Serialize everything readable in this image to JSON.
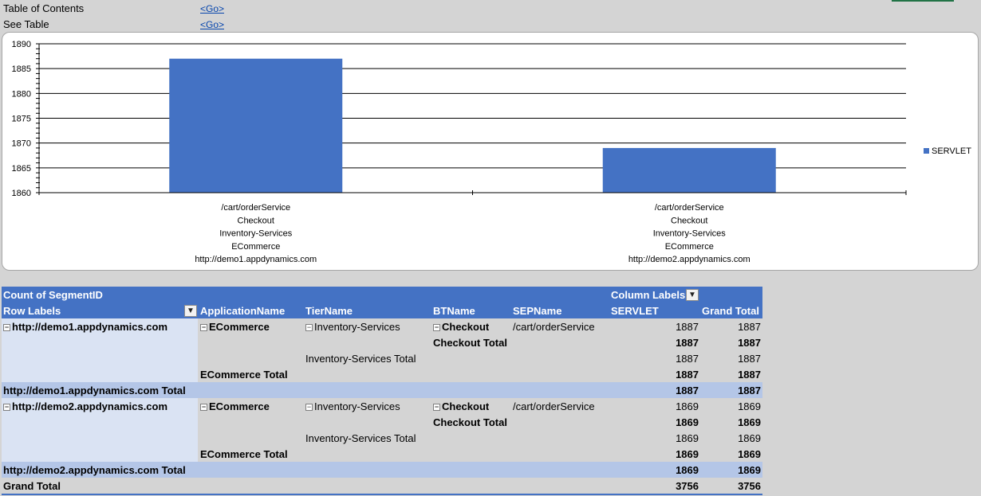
{
  "sheet": {
    "toc_label": "Table of Contents",
    "toc_link": "<Go>",
    "see_table_label": "See Table",
    "see_table_link": "<Go>"
  },
  "chart_data": {
    "type": "bar",
    "categories": [
      [
        "/cart/orderService",
        "Checkout",
        "Inventory-Services",
        "ECommerce",
        "http://demo1.appdynamics.com"
      ],
      [
        "/cart/orderService",
        "Checkout",
        "Inventory-Services",
        "ECommerce",
        "http://demo2.appdynamics.com"
      ]
    ],
    "series": [
      {
        "name": "SERVLET",
        "values": [
          1887,
          1869
        ],
        "color": "#4472c4"
      }
    ],
    "ylim": [
      1860,
      1890
    ],
    "yticks": [
      1860,
      1865,
      1870,
      1875,
      1880,
      1885,
      1890
    ],
    "grid": true,
    "legend": "right"
  },
  "pivot": {
    "header": {
      "count_label": "Count of SegmentID",
      "column_labels": "Column Labels",
      "row_labels": "Row Labels",
      "application_name": "ApplicationName",
      "tier_name": "TierName",
      "bt_name": "BTName",
      "sep_name": "SEPName",
      "servlet": "SERVLET",
      "grand_total": "Grand Total"
    },
    "groups": [
      {
        "host": "http://demo1.appdynamics.com",
        "app": "ECommerce",
        "tier": "Inventory-Services",
        "bt": "Checkout",
        "sep": "/cart/orderService",
        "servlet": "1887",
        "total": "1887",
        "bt_total_label": "Checkout Total",
        "bt_total_servlet": "1887",
        "bt_total_total": "1887",
        "tier_total_label": "Inventory-Services Total",
        "tier_total_servlet": "1887",
        "tier_total_total": "1887",
        "app_total_label": "ECommerce Total",
        "app_total_servlet": "1887",
        "app_total_total": "1887",
        "host_total_label": "http://demo1.appdynamics.com Total",
        "host_total_servlet": "1887",
        "host_total_total": "1887"
      },
      {
        "host": "http://demo2.appdynamics.com",
        "app": "ECommerce",
        "tier": "Inventory-Services",
        "bt": "Checkout",
        "sep": "/cart/orderService",
        "servlet": "1869",
        "total": "1869",
        "bt_total_label": "Checkout Total",
        "bt_total_servlet": "1869",
        "bt_total_total": "1869",
        "tier_total_label": "Inventory-Services Total",
        "tier_total_servlet": "1869",
        "tier_total_total": "1869",
        "app_total_label": "ECommerce Total",
        "app_total_servlet": "1869",
        "app_total_total": "1869",
        "host_total_label": "http://demo2.appdynamics.com Total",
        "host_total_servlet": "1869",
        "host_total_total": "1869"
      }
    ],
    "grand_total_label": "Grand Total",
    "grand_total_servlet": "3756",
    "grand_total_total": "3756"
  }
}
